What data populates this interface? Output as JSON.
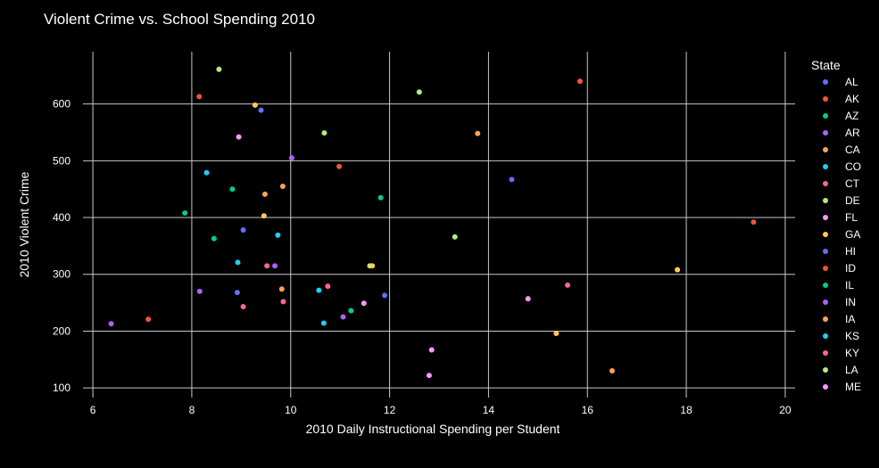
{
  "chart_data": {
    "type": "scatter",
    "title": "Violent Crime vs. School Spending 2010",
    "xlabel": "2010 Daily Instructional Spending per Student",
    "ylabel": "2010 Violent Crime",
    "xlim": [
      5.8,
      20.2
    ],
    "ylim": [
      83,
      692
    ],
    "xticks": [
      6,
      8,
      10,
      12,
      14,
      16,
      18,
      20
    ],
    "yticks": [
      100,
      200,
      300,
      400,
      500,
      600
    ],
    "grid": true,
    "legend_title": "State",
    "legend_position": "right",
    "legend_entries": [
      {
        "name": "AL",
        "color": "#636efa"
      },
      {
        "name": "AK",
        "color": "#ef553b"
      },
      {
        "name": "AZ",
        "color": "#00cc96"
      },
      {
        "name": "AR",
        "color": "#ab63fa"
      },
      {
        "name": "CA",
        "color": "#ffa15a"
      },
      {
        "name": "CO",
        "color": "#19d3f3"
      },
      {
        "name": "CT",
        "color": "#ff6692"
      },
      {
        "name": "DE",
        "color": "#b6e880"
      },
      {
        "name": "FL",
        "color": "#ff97ff"
      },
      {
        "name": "GA",
        "color": "#fecb52"
      },
      {
        "name": "HI",
        "color": "#636efa"
      },
      {
        "name": "ID",
        "color": "#ef553b"
      },
      {
        "name": "IL",
        "color": "#00cc96"
      },
      {
        "name": "IN",
        "color": "#ab63fa"
      },
      {
        "name": "IA",
        "color": "#ffa15a"
      },
      {
        "name": "KS",
        "color": "#19d3f3"
      },
      {
        "name": "KY",
        "color": "#ff6692"
      },
      {
        "name": "LA",
        "color": "#b6e880"
      },
      {
        "name": "ME",
        "color": "#ff97ff"
      }
    ],
    "points": [
      {
        "x": 8.55,
        "y": 661,
        "color": "#b6e880"
      },
      {
        "x": 12.6,
        "y": 621,
        "color": "#b6e880"
      },
      {
        "x": 15.85,
        "y": 640,
        "color": "#ef553b"
      },
      {
        "x": 8.15,
        "y": 613,
        "color": "#ef553b"
      },
      {
        "x": 9.28,
        "y": 598,
        "color": "#fecb52"
      },
      {
        "x": 9.4,
        "y": 589,
        "color": "#636efa"
      },
      {
        "x": 10.68,
        "y": 549,
        "color": "#b6e880"
      },
      {
        "x": 13.78,
        "y": 548,
        "color": "#ffa15a"
      },
      {
        "x": 8.95,
        "y": 542,
        "color": "#ff97ff"
      },
      {
        "x": 10.02,
        "y": 505,
        "color": "#ab63fa"
      },
      {
        "x": 10.98,
        "y": 490,
        "color": "#ef553b"
      },
      {
        "x": 8.3,
        "y": 479,
        "color": "#19d3f3"
      },
      {
        "x": 14.47,
        "y": 467,
        "color": "#636efa"
      },
      {
        "x": 9.84,
        "y": 455,
        "color": "#ffa15a"
      },
      {
        "x": 8.82,
        "y": 450,
        "color": "#00cc96"
      },
      {
        "x": 9.48,
        "y": 441,
        "color": "#ffa15a"
      },
      {
        "x": 11.82,
        "y": 435,
        "color": "#00cc96"
      },
      {
        "x": 7.86,
        "y": 408,
        "color": "#00cc96"
      },
      {
        "x": 9.46,
        "y": 403,
        "color": "#fecb52"
      },
      {
        "x": 19.36,
        "y": 392,
        "color": "#ef553b"
      },
      {
        "x": 9.04,
        "y": 378,
        "color": "#636efa"
      },
      {
        "x": 9.74,
        "y": 369,
        "color": "#19d3f3"
      },
      {
        "x": 13.32,
        "y": 366,
        "color": "#b6e880"
      },
      {
        "x": 8.45,
        "y": 363,
        "color": "#00cc96"
      },
      {
        "x": 8.93,
        "y": 321,
        "color": "#19d3f3"
      },
      {
        "x": 9.52,
        "y": 315,
        "color": "#ff6692"
      },
      {
        "x": 9.68,
        "y": 315,
        "color": "#ab63fa"
      },
      {
        "x": 11.6,
        "y": 315,
        "color": "#b6e880"
      },
      {
        "x": 11.65,
        "y": 315,
        "color": "#fecb52"
      },
      {
        "x": 17.82,
        "y": 308,
        "color": "#fecb52"
      },
      {
        "x": 15.6,
        "y": 281,
        "color": "#ff6692"
      },
      {
        "x": 10.75,
        "y": 279,
        "color": "#ff6692"
      },
      {
        "x": 9.82,
        "y": 274,
        "color": "#ffa15a"
      },
      {
        "x": 10.57,
        "y": 272,
        "color": "#19d3f3"
      },
      {
        "x": 8.16,
        "y": 270,
        "color": "#ab63fa"
      },
      {
        "x": 8.92,
        "y": 268,
        "color": "#636efa"
      },
      {
        "x": 11.9,
        "y": 263,
        "color": "#636efa"
      },
      {
        "x": 14.8,
        "y": 257,
        "color": "#ff97ff"
      },
      {
        "x": 9.85,
        "y": 252,
        "color": "#ff6692"
      },
      {
        "x": 11.48,
        "y": 249,
        "color": "#ff97ff"
      },
      {
        "x": 9.04,
        "y": 243,
        "color": "#ff6692"
      },
      {
        "x": 11.22,
        "y": 236,
        "color": "#00cc96"
      },
      {
        "x": 11.06,
        "y": 225,
        "color": "#ab63fa"
      },
      {
        "x": 7.12,
        "y": 221,
        "color": "#ef553b"
      },
      {
        "x": 10.67,
        "y": 214,
        "color": "#19d3f3"
      },
      {
        "x": 6.37,
        "y": 213,
        "color": "#ab63fa"
      },
      {
        "x": 15.37,
        "y": 196,
        "color": "#fecb52"
      },
      {
        "x": 12.85,
        "y": 167,
        "color": "#ff97ff"
      },
      {
        "x": 16.5,
        "y": 130,
        "color": "#ffa15a"
      },
      {
        "x": 12.8,
        "y": 122,
        "color": "#ff97ff"
      }
    ]
  }
}
